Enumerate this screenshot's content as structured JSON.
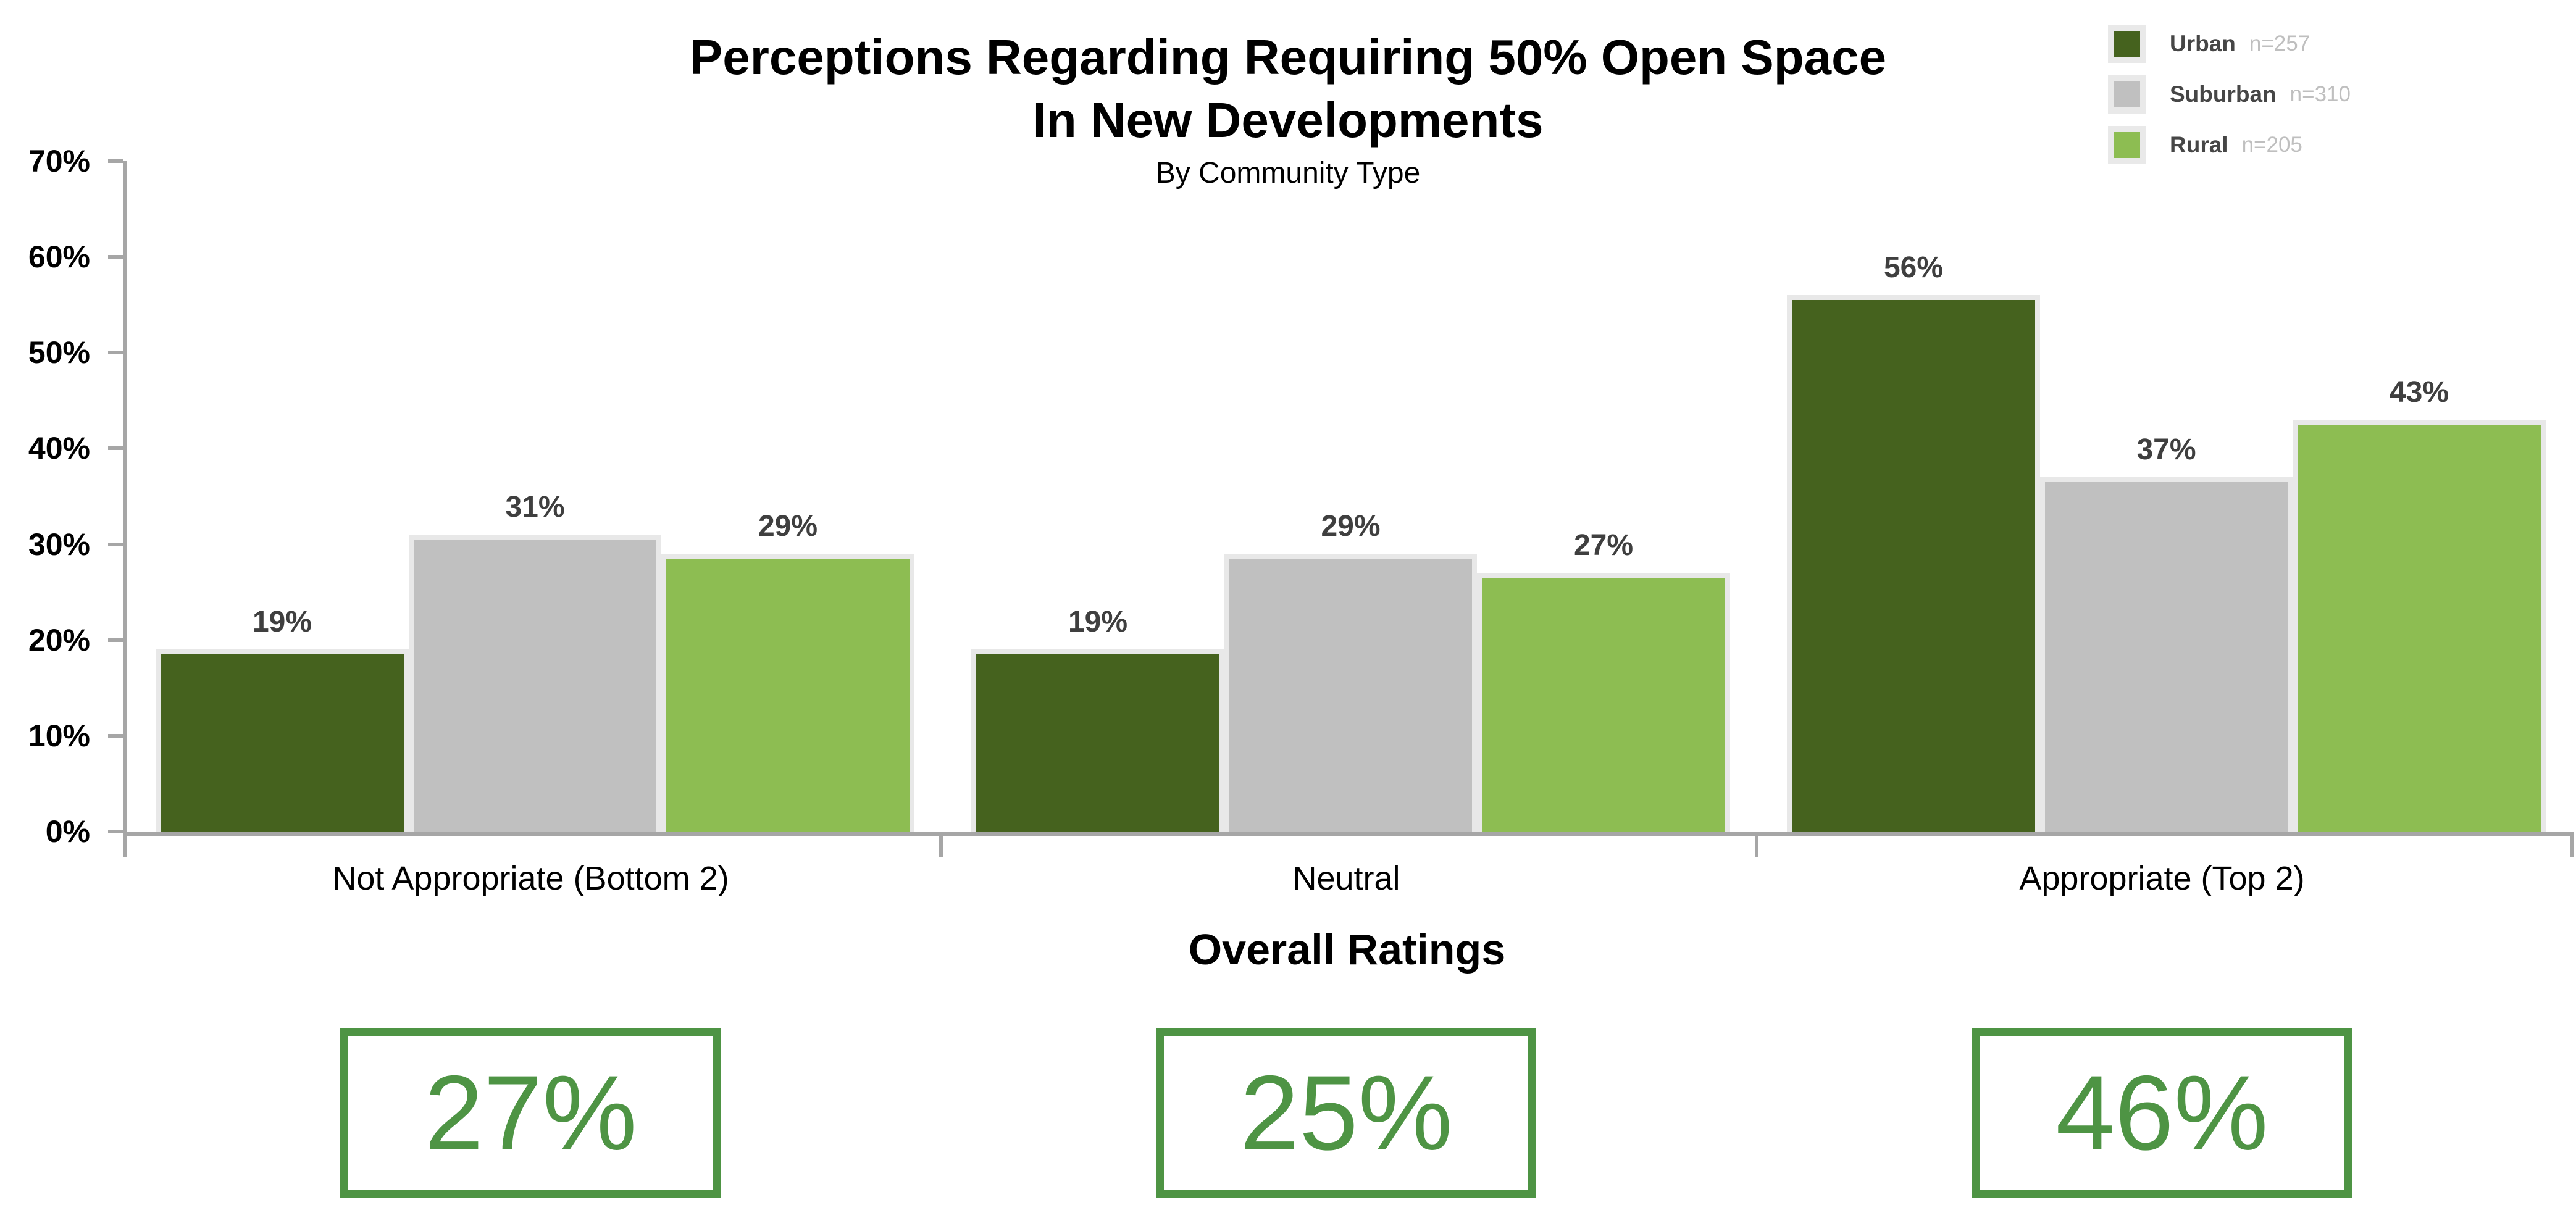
{
  "header": {
    "title_line1": "Perceptions Regarding Requiring 50% Open Space",
    "title_line2": "In New Developments",
    "subtitle": "By Community Type"
  },
  "legend": {
    "position": "top-right",
    "items": [
      {
        "label": "Urban",
        "n_label": "n=257",
        "color": "#45621E"
      },
      {
        "label": "Suburban",
        "n_label": "n=310",
        "color": "#C0C0C0"
      },
      {
        "label": "Rural",
        "n_label": "n=205",
        "color": "#8DBD52"
      }
    ]
  },
  "chart_data": {
    "type": "bar",
    "title": "Perceptions Regarding Requiring 50% Open Space In New Developments",
    "subtitle": "By Community Type",
    "categories": [
      "Not Appropriate (Bottom 2)",
      "Neutral",
      "Appropriate (Top 2)"
    ],
    "series": [
      {
        "name": "Urban",
        "n": 257,
        "color": "#45621E",
        "values": [
          19,
          19,
          56
        ]
      },
      {
        "name": "Suburban",
        "n": 310,
        "color": "#C0C0C0",
        "values": [
          31,
          29,
          37
        ]
      },
      {
        "name": "Rural",
        "n": 205,
        "color": "#8DBD52",
        "values": [
          29,
          27,
          43
        ]
      }
    ],
    "value_suffix": "%",
    "ylim": [
      0,
      70
    ],
    "ytick_step": 10,
    "yticks": [
      "0%",
      "10%",
      "20%",
      "30%",
      "40%",
      "50%",
      "60%",
      "70%"
    ],
    "grid": false,
    "legend_position": "top-right",
    "xlabel": "",
    "ylabel": ""
  },
  "overall_ratings": {
    "label": "Overall Ratings",
    "values": [
      "27%",
      "25%",
      "46%"
    ],
    "box_color": "#4E9444"
  }
}
